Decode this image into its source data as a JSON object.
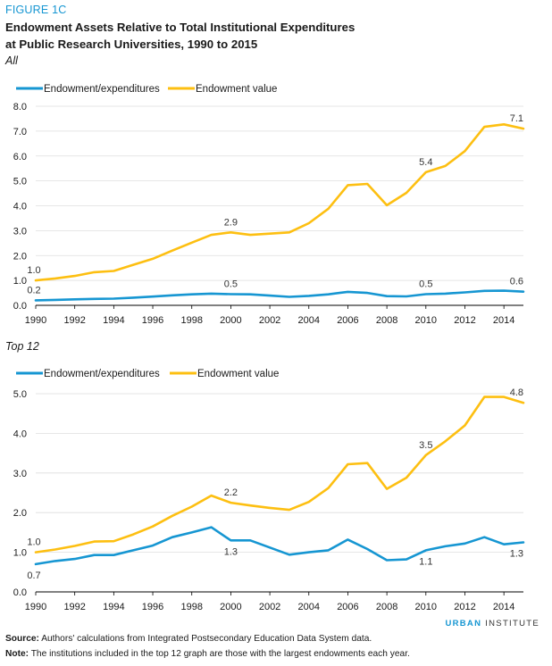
{
  "header": {
    "figure_label": "FIGURE 1C",
    "title_line1": "Endowment Assets Relative to Total Institutional Expenditures",
    "title_line2": "at Public Research Universities, 1990 to 2015"
  },
  "chart_data": [
    {
      "type": "line",
      "panel_title": "All",
      "x": [
        1990,
        1991,
        1992,
        1993,
        1994,
        1995,
        1996,
        1997,
        1998,
        1999,
        2000,
        2001,
        2002,
        2003,
        2004,
        2005,
        2006,
        2007,
        2008,
        2009,
        2010,
        2011,
        2012,
        2013,
        2014,
        2015
      ],
      "series": [
        {
          "name": "Endowment/expenditures",
          "color": "#1696d2",
          "values": [
            0.2,
            0.22,
            0.24,
            0.26,
            0.27,
            0.31,
            0.35,
            0.4,
            0.44,
            0.47,
            0.45,
            0.44,
            0.39,
            0.34,
            0.38,
            0.44,
            0.54,
            0.5,
            0.37,
            0.36,
            0.45,
            0.47,
            0.52,
            0.58,
            0.59,
            0.55
          ]
        },
        {
          "name": "Endowment value",
          "color": "#fdbf11",
          "values": [
            1.0,
            1.08,
            1.18,
            1.33,
            1.38,
            1.63,
            1.87,
            2.2,
            2.52,
            2.83,
            2.93,
            2.83,
            2.88,
            2.93,
            3.3,
            3.88,
            4.83,
            4.88,
            4.02,
            4.52,
            5.35,
            5.6,
            6.2,
            7.17,
            7.27,
            7.1
          ]
        }
      ],
      "annotations": [
        {
          "series": 1,
          "x": 1990,
          "text": "1.0",
          "pos": "above"
        },
        {
          "series": 1,
          "x": 2000,
          "text": "2.9",
          "pos": "above"
        },
        {
          "series": 1,
          "x": 2010,
          "text": "5.4",
          "pos": "above"
        },
        {
          "series": 1,
          "x": 2015,
          "text": "7.1",
          "pos": "above"
        },
        {
          "series": 0,
          "x": 1990,
          "text": "0.2",
          "pos": "above"
        },
        {
          "series": 0,
          "x": 2000,
          "text": "0.5",
          "pos": "above"
        },
        {
          "series": 0,
          "x": 2010,
          "text": "0.5",
          "pos": "above"
        },
        {
          "series": 0,
          "x": 2015,
          "text": "0.6",
          "pos": "above"
        }
      ],
      "ylim": [
        0,
        8
      ],
      "yticks": [
        "0.0",
        "1.0",
        "2.0",
        "3.0",
        "4.0",
        "5.0",
        "6.0",
        "7.0",
        "8.0"
      ],
      "xticks": [
        "1990",
        "1992",
        "1994",
        "1996",
        "1998",
        "2000",
        "2002",
        "2004",
        "2006",
        "2008",
        "2010",
        "2012",
        "2014"
      ],
      "grid": true,
      "legend": "top-left"
    },
    {
      "type": "line",
      "panel_title": "Top 12",
      "x": [
        1990,
        1991,
        1992,
        1993,
        1994,
        1995,
        1996,
        1997,
        1998,
        1999,
        2000,
        2001,
        2002,
        2003,
        2004,
        2005,
        2006,
        2007,
        2008,
        2009,
        2010,
        2011,
        2012,
        2013,
        2014,
        2015
      ],
      "series": [
        {
          "name": "Endowment/expenditures",
          "color": "#1696d2",
          "values": [
            0.7,
            0.78,
            0.83,
            0.93,
            0.93,
            1.05,
            1.17,
            1.38,
            1.5,
            1.63,
            1.3,
            1.3,
            1.12,
            0.94,
            1.0,
            1.05,
            1.32,
            1.08,
            0.8,
            0.82,
            1.05,
            1.15,
            1.22,
            1.38,
            1.2,
            1.25
          ]
        },
        {
          "name": "Endowment value",
          "color": "#fdbf11",
          "values": [
            1.0,
            1.07,
            1.16,
            1.27,
            1.28,
            1.45,
            1.65,
            1.92,
            2.15,
            2.43,
            2.25,
            2.18,
            2.12,
            2.07,
            2.27,
            2.62,
            3.22,
            3.25,
            2.6,
            2.88,
            3.45,
            3.8,
            4.2,
            4.92,
            4.92,
            4.77
          ]
        }
      ],
      "annotations": [
        {
          "series": 1,
          "x": 1990,
          "text": "1.0",
          "pos": "above"
        },
        {
          "series": 1,
          "x": 2000,
          "text": "2.2",
          "pos": "above"
        },
        {
          "series": 1,
          "x": 2010,
          "text": "3.5",
          "pos": "above"
        },
        {
          "series": 1,
          "x": 2015,
          "text": "4.8",
          "pos": "above"
        },
        {
          "series": 0,
          "x": 1990,
          "text": "0.7",
          "pos": "below"
        },
        {
          "series": 0,
          "x": 2000,
          "text": "1.3",
          "pos": "below"
        },
        {
          "series": 0,
          "x": 2010,
          "text": "1.1",
          "pos": "below"
        },
        {
          "series": 0,
          "x": 2015,
          "text": "1.3",
          "pos": "below"
        }
      ],
      "ylim": [
        0,
        5
      ],
      "yticks": [
        "0.0",
        "1.0",
        "2.0",
        "3.0",
        "4.0",
        "5.0"
      ],
      "xticks": [
        "1990",
        "1992",
        "1994",
        "1996",
        "1998",
        "2000",
        "2002",
        "2004",
        "2006",
        "2008",
        "2010",
        "2012",
        "2014"
      ],
      "grid": true,
      "legend": "top-left"
    }
  ],
  "branding": {
    "bold": "URBAN",
    "light": "INSTITUTE"
  },
  "footer": {
    "source_label": "Source:",
    "source_text": "Authors' calculations from Integrated Postsecondary Education Data System data.",
    "note_label": "Note:",
    "note_text": "The institutions included in the top 12 graph are those with the largest endowments each year."
  }
}
